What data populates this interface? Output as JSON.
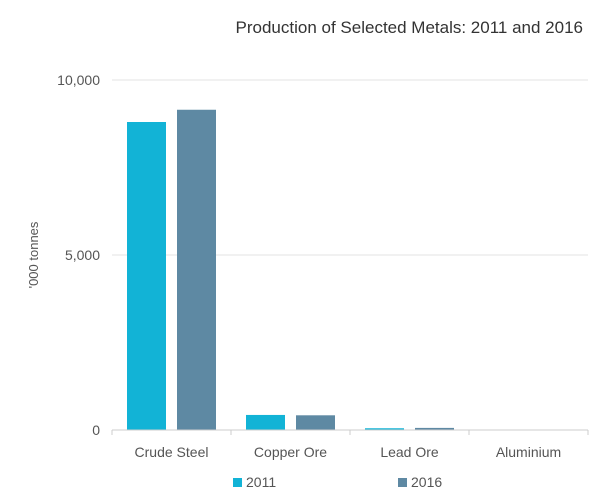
{
  "chart_data": {
    "type": "bar",
    "title": "Production of Selected Metals: 2011 and 2016",
    "xlabel": "",
    "ylabel": "'000 tonnes",
    "categories": [
      "Crude Steel",
      "Copper Ore",
      "Lead Ore",
      "Aluminium"
    ],
    "series": [
      {
        "name": "2011",
        "color": "#12b3d6",
        "values": [
          8800,
          430,
          50,
          0
        ]
      },
      {
        "name": "2016",
        "color": "#5e89a3",
        "values": [
          9150,
          420,
          60,
          0
        ]
      }
    ],
    "ylim": [
      0,
      10000
    ],
    "yticks": [
      {
        "value": 0,
        "label": "0"
      },
      {
        "value": 5000,
        "label": "5,000"
      },
      {
        "value": 10000,
        "label": "10,000"
      }
    ],
    "grid": true,
    "legend": "bottom-center"
  }
}
